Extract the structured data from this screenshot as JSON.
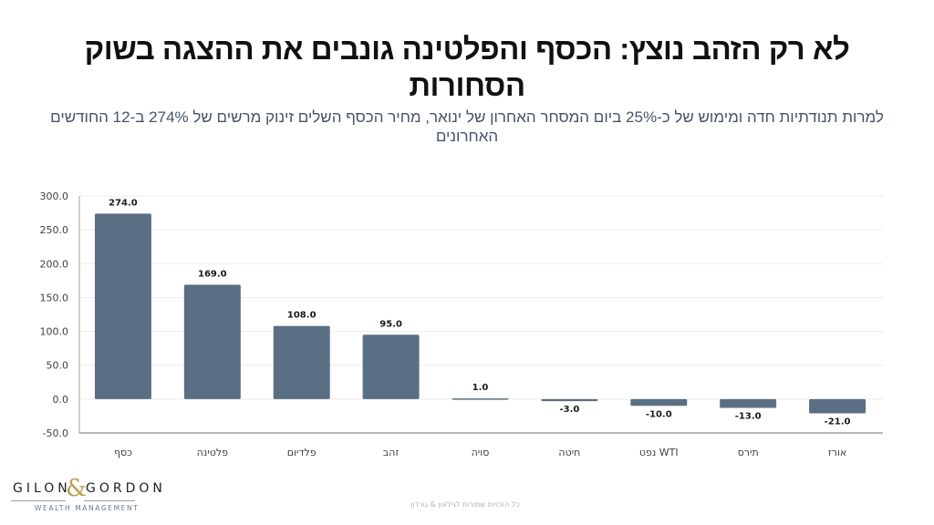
{
  "header": {
    "title": "לא רק הזהב נוצץ: הכסף והפלטינה גונבים את ההצגה בשוק הסחורות",
    "subtitle": "למרות תנודתיות חדה ומימוש של כ-25% ביום המסחר האחרון של ינואר, מחיר הכסף השלים זינוק מרשים של 274% ב-12 החודשים האחרונים"
  },
  "logo": {
    "left_word": "GILON",
    "ampersand": "&",
    "right_word": "GORDON",
    "tagline": "WEALTH MANAGEMENT"
  },
  "footer": {
    "text": "כל הזכויות שמורות לגילאון & גורדון"
  },
  "colors": {
    "bar": "#5b6f84",
    "gridline": "#ececec",
    "axis": "#a0a0a0",
    "title": "#111111",
    "subtitle": "#44546a"
  },
  "chart_data": {
    "type": "bar",
    "title": "",
    "xlabel": "",
    "ylabel": "",
    "categories": [
      "כסף",
      "פלטינה",
      "פלדיום",
      "זהב",
      "סויה",
      "חיטה",
      "WTI נפט",
      "תירס",
      "אורז"
    ],
    "values": [
      274.0,
      169.0,
      108.0,
      95.0,
      1.0,
      -3.0,
      -10.0,
      -13.0,
      -21.0
    ],
    "data_labels": [
      "274.0",
      "169.0",
      "108.0",
      "95.0",
      "1.0",
      "-3.0",
      "-10.0",
      "-13.0",
      "-21.0"
    ],
    "ylim": [
      -50,
      300
    ],
    "yticks": [
      300,
      250,
      200,
      150,
      100,
      50,
      0,
      -50
    ],
    "ytick_labels": [
      "300.0",
      "250.0",
      "200.0",
      "150.0",
      "100.0",
      "50.0",
      "0.0",
      "-50.0"
    ],
    "grid": true,
    "legend": "none"
  }
}
